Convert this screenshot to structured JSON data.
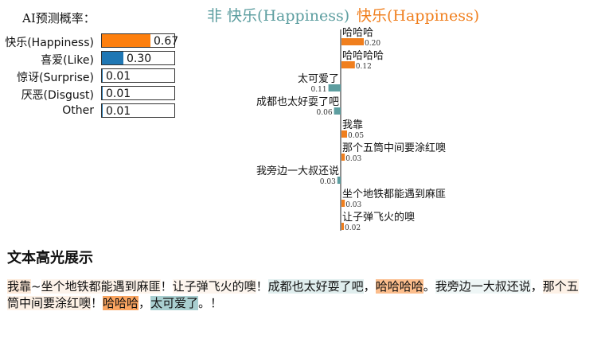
{
  "probability_title": "AI预测概率：",
  "probabilities": [
    {
      "label": "快乐(Happiness)",
      "value": 0.67,
      "display": "0.67",
      "color": "#fd7f0e"
    },
    {
      "label": "喜爱(Like)",
      "value": 0.3,
      "display": "0.30",
      "color": "#1f77b4"
    },
    {
      "label": "惊讶(Surprise)",
      "value": 0.01,
      "display": "0.01",
      "color": "#1f77b4"
    },
    {
      "label": "厌恶(Disgust)",
      "value": 0.01,
      "display": "0.01",
      "color": "#1f77b4"
    },
    {
      "label": "Other",
      "value": 0.01,
      "display": "0.01",
      "color": "#1f77b4"
    }
  ],
  "chart_data": {
    "type": "bar",
    "legend": {
      "negative": "非 快乐(Happiness)",
      "positive": "快乐(Happiness)"
    },
    "colors": {
      "positive": "#f07f1e",
      "negative": "#5d9ea0"
    },
    "series": [
      {
        "token": "哈哈哈",
        "value": 0.2,
        "direction": "positive",
        "display": "0.20"
      },
      {
        "token": "哈哈哈哈",
        "value": 0.12,
        "direction": "positive",
        "display": "0.12"
      },
      {
        "token": "太可爱了",
        "value": 0.11,
        "direction": "negative",
        "display": "0.11"
      },
      {
        "token": "成都也太好耍了吧",
        "value": 0.06,
        "direction": "negative",
        "display": "0.06"
      },
      {
        "token": "我靠",
        "value": 0.05,
        "direction": "positive",
        "display": "0.05"
      },
      {
        "token": "那个五筒中间要涂红噢",
        "value": 0.03,
        "direction": "positive",
        "display": "0.03"
      },
      {
        "token": "我旁边一大叔还说",
        "value": 0.03,
        "direction": "negative",
        "display": "0.03"
      },
      {
        "token": "坐个地铁都能遇到麻匪",
        "value": 0.03,
        "direction": "positive",
        "display": "0.03"
      },
      {
        "token": "让子弹飞火的噢",
        "value": 0.02,
        "direction": "positive",
        "display": "0.02"
      }
    ]
  },
  "highlight_title": "文本高光展示",
  "highlight_segments": [
    {
      "text": "我靠",
      "bg": "#fde9d8"
    },
    {
      "text": "~",
      "bg": "#ffffff"
    },
    {
      "text": "坐个地铁都能遇到麻匪",
      "bg": "#fdf3ea"
    },
    {
      "text": "！",
      "bg": "#ffffff"
    },
    {
      "text": "让子弹飞火的噢",
      "bg": "#fdf5ee"
    },
    {
      "text": "！",
      "bg": "#ffffff"
    },
    {
      "text": "成都也太好耍了吧",
      "bg": "#e0eeee"
    },
    {
      "text": "，",
      "bg": "#ffffff"
    },
    {
      "text": "哈哈哈哈",
      "bg": "#fbbd8c"
    },
    {
      "text": "。",
      "bg": "#ffffff"
    },
    {
      "text": "我旁边一大叔还说",
      "bg": "#eef6f6"
    },
    {
      "text": "，",
      "bg": "#ffffff"
    },
    {
      "text": "那个五筒中间要涂红噢",
      "bg": "#fdf1e6"
    },
    {
      "text": "！",
      "bg": "#ffffff"
    },
    {
      "text": "哈哈哈",
      "bg": "#f9a460"
    },
    {
      "text": "，",
      "bg": "#ffffff"
    },
    {
      "text": "太可爱了",
      "bg": "#a9cfd0"
    },
    {
      "text": "。！",
      "bg": "#ffffff"
    }
  ]
}
